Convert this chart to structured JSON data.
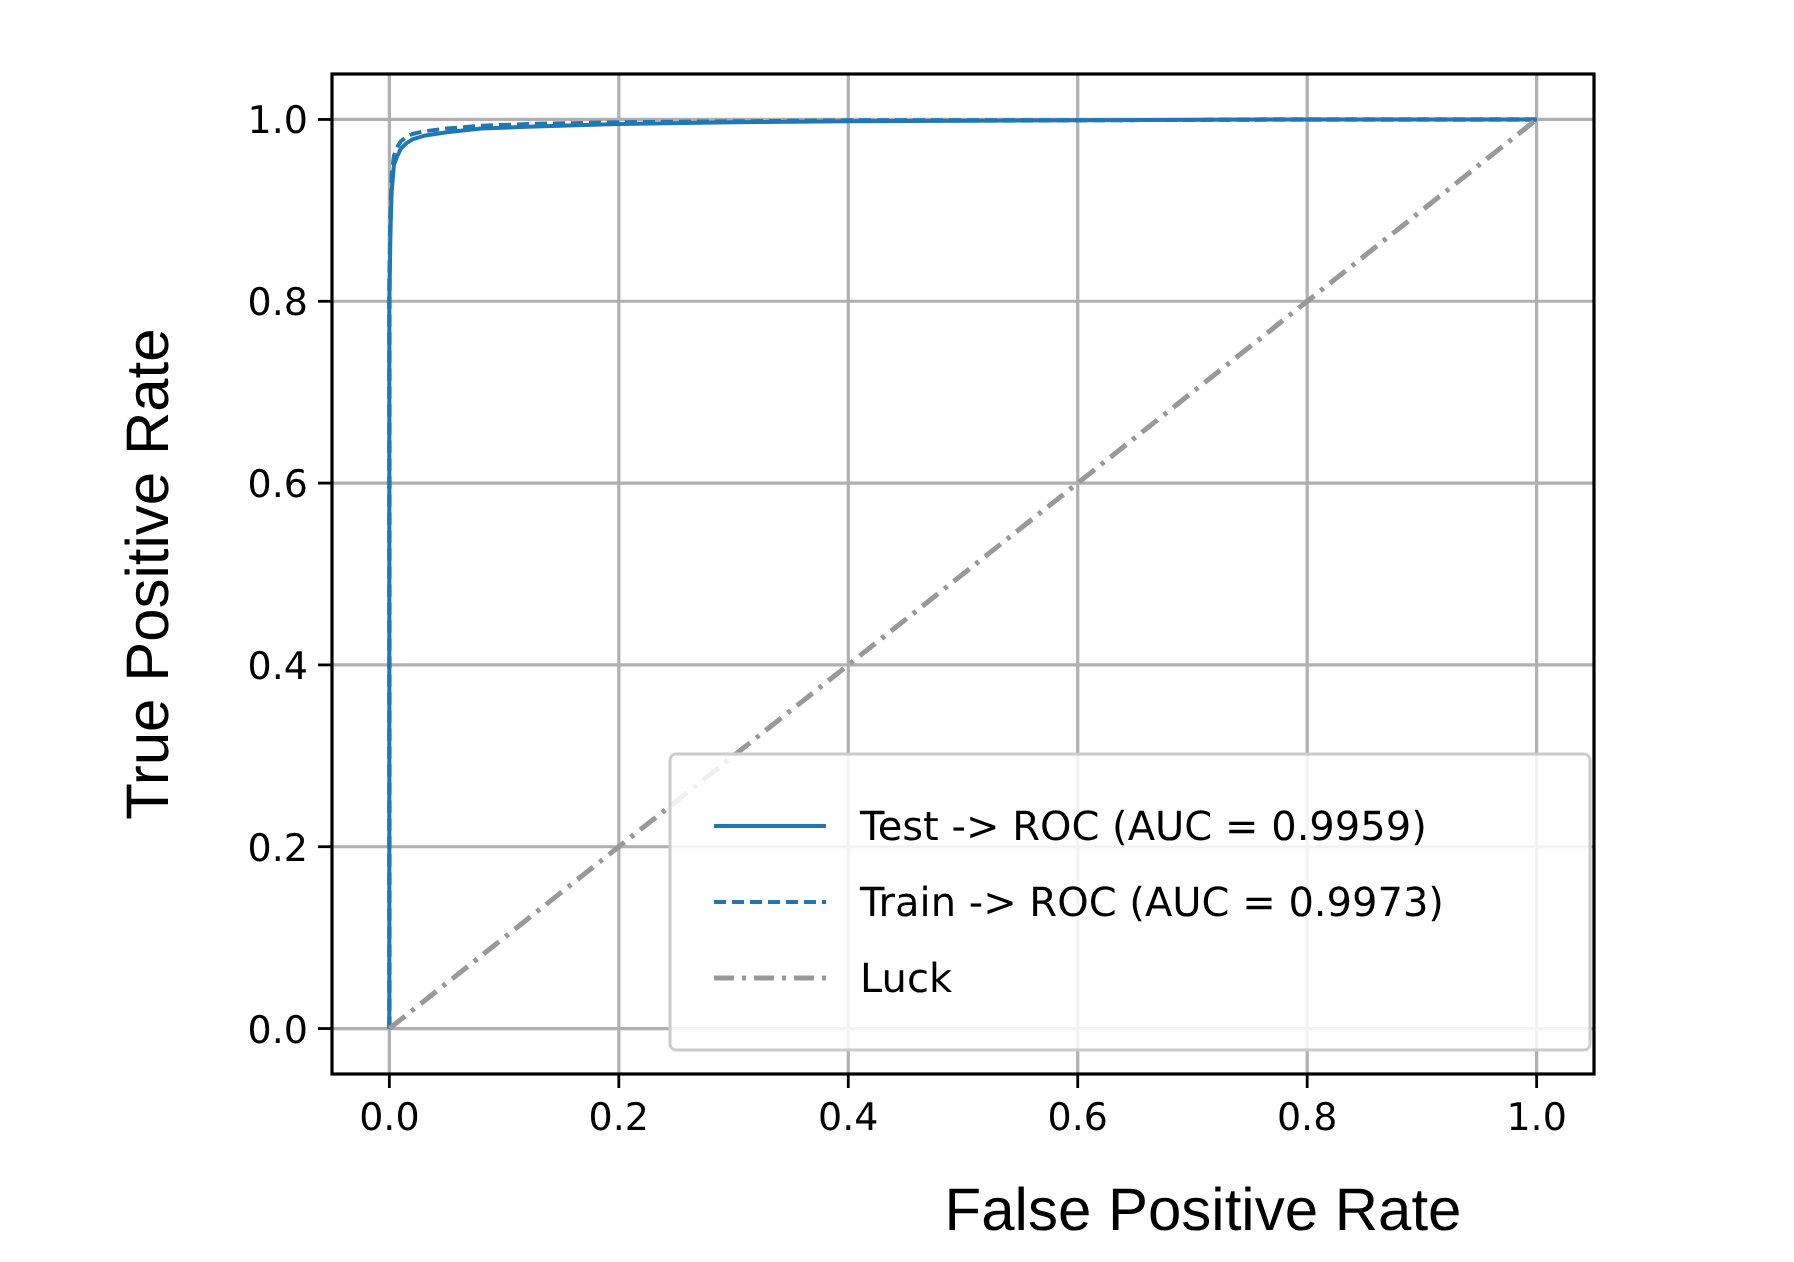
{
  "chart_data": {
    "type": "line",
    "xlabel": "False Positive Rate",
    "ylabel": "True Positive Rate",
    "xlim": [
      -0.05,
      1.05
    ],
    "ylim": [
      -0.05,
      1.05
    ],
    "xticks": [
      {
        "value": 0,
        "label": "0.0"
      },
      {
        "value": 0.2,
        "label": "0.2"
      },
      {
        "value": 0.4,
        "label": "0.4"
      },
      {
        "value": 0.6,
        "label": "0.6"
      },
      {
        "value": 0.8,
        "label": "0.8"
      },
      {
        "value": 1,
        "label": "1.0"
      }
    ],
    "yticks": [
      {
        "value": 0,
        "label": "0.0"
      },
      {
        "value": 0.2,
        "label": "0.2"
      },
      {
        "value": 0.4,
        "label": "0.4"
      },
      {
        "value": 0.6,
        "label": "0.6"
      },
      {
        "value": 0.8,
        "label": "0.8"
      },
      {
        "value": 1,
        "label": "1.0"
      }
    ],
    "grid": true,
    "legend": "bottom right",
    "marker": "none",
    "series": [
      {
        "name": "Test -> ROC (AUC = 0.9959)",
        "color": "#1f77b4",
        "line_style": "solid",
        "x": [
          0,
          0,
          0.001,
          0.002,
          0.004,
          0.007,
          0.01,
          0.015,
          0.02,
          0.03,
          0.05,
          0.08,
          0.12,
          0.2,
          0.3,
          0.4,
          0.6,
          0.8,
          1
        ],
        "values": [
          0,
          0.8,
          0.88,
          0.92,
          0.95,
          0.96,
          0.968,
          0.974,
          0.978,
          0.982,
          0.986,
          0.99,
          0.992,
          0.995,
          0.997,
          0.998,
          0.999,
          1,
          1
        ]
      },
      {
        "name": "Train -> ROC (AUC = 0.9973)",
        "color": "#1f77b4",
        "line_style": "dashed",
        "x": [
          0,
          0,
          0.001,
          0.002,
          0.004,
          0.007,
          0.01,
          0.015,
          0.02,
          0.03,
          0.05,
          0.08,
          0.12,
          0.2,
          0.3,
          0.4,
          0.6,
          0.8,
          1
        ],
        "values": [
          0,
          0.82,
          0.9,
          0.94,
          0.96,
          0.97,
          0.976,
          0.981,
          0.984,
          0.987,
          0.99,
          0.993,
          0.995,
          0.997,
          0.998,
          0.999,
          0.999,
          1,
          1
        ]
      },
      {
        "name": "Luck",
        "color": "#999999",
        "line_style": "dashdot",
        "x": [
          0,
          1
        ],
        "values": [
          0,
          1
        ]
      }
    ]
  }
}
